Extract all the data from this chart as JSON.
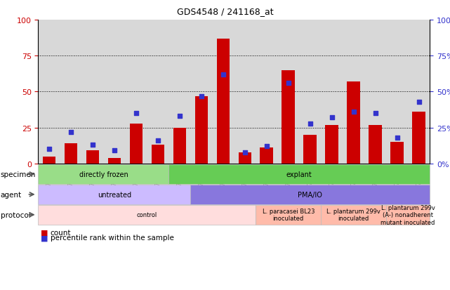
{
  "title": "GDS4548 / 241168_at",
  "samples": [
    "GSM579384",
    "GSM579385",
    "GSM579386",
    "GSM579381",
    "GSM579382",
    "GSM579383",
    "GSM579396",
    "GSM579397",
    "GSM579398",
    "GSM579387",
    "GSM579388",
    "GSM579389",
    "GSM579390",
    "GSM579391",
    "GSM579392",
    "GSM579393",
    "GSM579394",
    "GSM579395"
  ],
  "counts": [
    5,
    14,
    9,
    4,
    28,
    13,
    25,
    47,
    87,
    8,
    11,
    65,
    20,
    27,
    57,
    27,
    15,
    36
  ],
  "percentiles": [
    10,
    22,
    13,
    9,
    35,
    16,
    33,
    47,
    62,
    8,
    12,
    56,
    28,
    32,
    36,
    35,
    18,
    43
  ],
  "bar_color": "#cc0000",
  "dot_color": "#3333cc",
  "ylim": [
    0,
    100
  ],
  "yticks": [
    0,
    25,
    50,
    75,
    100
  ],
  "specimen_row": {
    "label": "specimen",
    "segments": [
      {
        "text": "directly frozen",
        "start": 0,
        "end": 6,
        "color": "#99dd88"
      },
      {
        "text": "explant",
        "start": 6,
        "end": 18,
        "color": "#66cc55"
      }
    ]
  },
  "agent_row": {
    "label": "agent",
    "segments": [
      {
        "text": "untreated",
        "start": 0,
        "end": 7,
        "color": "#ccbbff"
      },
      {
        "text": "PMA/IO",
        "start": 7,
        "end": 18,
        "color": "#8877dd"
      }
    ]
  },
  "protocol_row": {
    "label": "protocol",
    "segments": [
      {
        "text": "control",
        "start": 0,
        "end": 10,
        "color": "#ffdddd"
      },
      {
        "text": "L. paracasei BL23\ninoculated",
        "start": 10,
        "end": 13,
        "color": "#ffbbaa"
      },
      {
        "text": "L. plantarum 299v\ninoculated",
        "start": 13,
        "end": 16,
        "color": "#ffbbaa"
      },
      {
        "text": "L. plantarum 299v\n(A-) nonadherent\nmutant inoculated",
        "start": 16,
        "end": 18,
        "color": "#ffbbaa"
      }
    ]
  },
  "legend_count_color": "#cc0000",
  "legend_pct_color": "#3333cc"
}
